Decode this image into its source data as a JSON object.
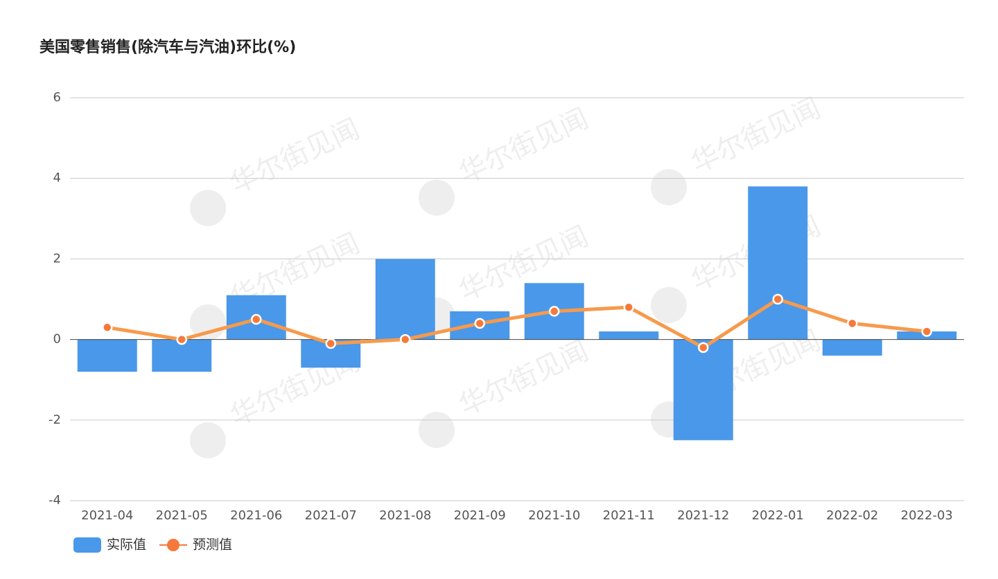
{
  "chart_data": {
    "type": "bar",
    "title": "美国零售销售(除汽车与汽油)环比(%)",
    "watermark": "华尔街见闻",
    "categories": [
      "2021-04",
      "2021-05",
      "2021-06",
      "2021-07",
      "2021-08",
      "2021-09",
      "2021-10",
      "2021-11",
      "2021-12",
      "2022-01",
      "2022-02",
      "2022-03"
    ],
    "series": [
      {
        "name": "实际值",
        "type": "bar",
        "color": "#4a98e9",
        "values": [
          -0.8,
          -0.8,
          1.1,
          -0.7,
          2.0,
          0.7,
          1.4,
          0.2,
          -2.5,
          3.8,
          -0.4,
          0.2
        ]
      },
      {
        "name": "预测值",
        "type": "line",
        "color": "#f79a4c",
        "values": [
          0.3,
          0,
          0.5,
          -0.1,
          0,
          0.4,
          0.7,
          0.8,
          -0.2,
          1.0,
          0.4,
          0.2
        ]
      }
    ],
    "ylim": [
      -4,
      6
    ],
    "yticks": [
      -4,
      -2,
      0,
      2,
      4,
      6
    ],
    "grid": true,
    "legend": "bottom-left"
  }
}
